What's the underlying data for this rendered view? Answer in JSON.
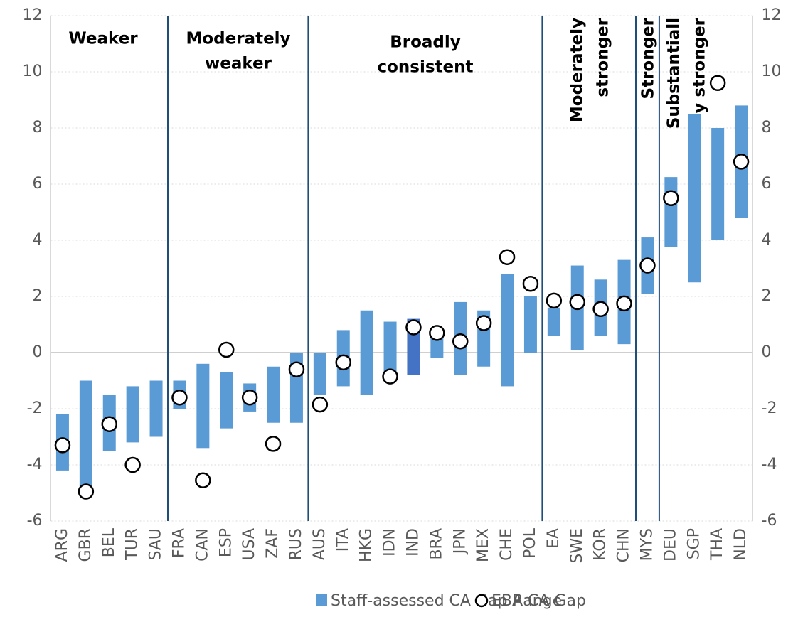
{
  "chart_data": {
    "type": "range-bar",
    "categories": [
      "ARG",
      "GBR",
      "BEL",
      "TUR",
      "SAU",
      "FRA",
      "CAN",
      "ESP",
      "USA",
      "ZAF",
      "RUS",
      "AUS",
      "ITA",
      "HKG",
      "IDN",
      "IND",
      "BRA",
      "JPN",
      "MEX",
      "CHE",
      "POL",
      "EA",
      "SWE",
      "KOR",
      "CHN",
      "MYS",
      "DEU",
      "SGP",
      "THA",
      "NLD"
    ],
    "series": [
      {
        "name": "Staff-assessed CA Gap Range",
        "color": "#5b9bd5",
        "low": [
          -4.2,
          -5,
          -3.5,
          -3.2,
          -3,
          -2,
          -3.4,
          -2.7,
          -2.1,
          -2.5,
          -2.5,
          -1.5,
          -1.2,
          -1.5,
          -0.9,
          -0.8,
          -0.2,
          -0.8,
          -0.5,
          -1.2,
          0,
          0.6,
          0.1,
          0.6,
          0.3,
          2.1,
          3.75,
          2.5,
          4,
          4.8
        ],
        "high": [
          -2.2,
          -1,
          -1.5,
          -1.2,
          -1,
          -1,
          -0.4,
          -0.7,
          -1.1,
          -0.5,
          0,
          0,
          0.8,
          1.5,
          1.1,
          1.2,
          0.8,
          1.8,
          1.5,
          2.8,
          2,
          1.6,
          3.1,
          2.6,
          3.3,
          4.1,
          6.25,
          8.5,
          8,
          8.8
        ]
      },
      {
        "name": "EBA CA Gap",
        "color": "#000000",
        "values": [
          -3.3,
          -4.95,
          -2.55,
          -4,
          null,
          -1.6,
          -4.55,
          0.1,
          -1.6,
          -3.25,
          -0.6,
          -1.85,
          -0.35,
          null,
          -0.85,
          0.9,
          0.7,
          0.4,
          1.05,
          3.4,
          2.45,
          1.85,
          1.8,
          1.55,
          1.75,
          3.1,
          5.5,
          null,
          9.6,
          6.8
        ]
      }
    ],
    "highlight": {
      "category": "IND",
      "color": "#4472c4"
    },
    "ylim": [
      -6,
      12
    ],
    "yticks": [
      -6,
      -4,
      -2,
      0,
      2,
      4,
      6,
      8,
      10,
      12
    ],
    "grid": true,
    "dividers_after": [
      "SAU",
      "RUS",
      "POL",
      "CHN",
      "MYS"
    ],
    "regions": [
      {
        "lines": [
          "Weaker"
        ]
      },
      {
        "lines": [
          "Moderately",
          "weaker"
        ]
      },
      {
        "lines": [
          "Broadly",
          "consistent"
        ]
      },
      {
        "lines": [
          "Moderately",
          "stronger"
        ],
        "rotated": true
      },
      {
        "lines": [
          "Stronger"
        ],
        "rotated": true
      },
      {
        "lines": [
          "Substantiall",
          "y stronger"
        ],
        "rotated": true
      }
    ]
  }
}
